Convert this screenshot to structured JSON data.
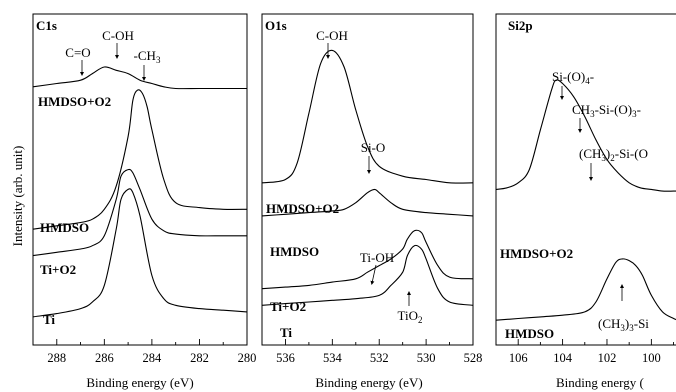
{
  "ylabel": "Intensity (arb. unit)",
  "colors": {
    "line": "#000000",
    "background": "#ffffff"
  },
  "chart_data": [
    {
      "type": "line",
      "title": "C1s",
      "xlabel": "Binding energy (eV)",
      "xlim": [
        289,
        280
      ],
      "xticks": [
        288,
        286,
        284,
        282,
        280
      ],
      "series": [
        {
          "name": "HMDSO+O2",
          "x": [
            289,
            288,
            287,
            286.5,
            286,
            285.5,
            285,
            284.5,
            284,
            283.5,
            283,
            282,
            281,
            280
          ],
          "y": [
            0.78,
            0.79,
            0.8,
            0.82,
            0.84,
            0.83,
            0.82,
            0.8,
            0.79,
            0.78,
            0.775,
            0.775,
            0.775,
            0.775
          ]
        },
        {
          "name": "HMDSO",
          "x": [
            289,
            288,
            287,
            286.5,
            286,
            285.5,
            285,
            284.8,
            284.6,
            284.4,
            284.2,
            284,
            283.5,
            283,
            282,
            281,
            280
          ],
          "y": [
            0.35,
            0.36,
            0.37,
            0.38,
            0.41,
            0.48,
            0.63,
            0.74,
            0.77,
            0.76,
            0.72,
            0.65,
            0.5,
            0.43,
            0.415,
            0.41,
            0.41
          ]
        },
        {
          "name": "Ti+O2",
          "x": [
            289,
            288,
            287,
            286.5,
            286,
            285.5,
            285.3,
            285,
            284.8,
            284.5,
            284,
            283.5,
            283,
            282,
            281,
            280
          ],
          "y": [
            0.27,
            0.28,
            0.29,
            0.3,
            0.33,
            0.44,
            0.51,
            0.53,
            0.52,
            0.47,
            0.38,
            0.345,
            0.335,
            0.33,
            0.33,
            0.33
          ]
        },
        {
          "name": "Ti",
          "x": [
            289,
            288,
            287,
            286.5,
            286,
            285.5,
            285.3,
            285,
            284.8,
            284.5,
            284,
            283.5,
            283,
            282,
            281,
            280
          ],
          "y": [
            0.085,
            0.095,
            0.11,
            0.13,
            0.18,
            0.35,
            0.44,
            0.47,
            0.46,
            0.39,
            0.21,
            0.14,
            0.12,
            0.11,
            0.105,
            0.1
          ]
        }
      ],
      "annotations": [
        "C=O",
        "C-OH",
        "-CH3"
      ],
      "annotation_x": [
        287.0,
        285.8,
        284.7
      ]
    },
    {
      "type": "line",
      "title": "O1s",
      "xlabel": "Binding energy (eV)",
      "xlim": [
        537,
        528
      ],
      "xticks": [
        536,
        534,
        532,
        530,
        528
      ],
      "series": [
        {
          "name": "HMDSO+O2",
          "x": [
            537,
            536,
            535.5,
            535,
            534.5,
            534,
            533.5,
            533,
            532.5,
            532,
            531,
            530,
            529,
            528
          ],
          "y": [
            0.49,
            0.5,
            0.55,
            0.7,
            0.85,
            0.89,
            0.84,
            0.71,
            0.6,
            0.54,
            0.51,
            0.5,
            0.49,
            0.49
          ]
        },
        {
          "name": "HMDSO",
          "x": [
            537,
            536,
            535,
            534,
            533.5,
            533,
            532.5,
            532.2,
            532,
            531.5,
            531,
            530,
            529,
            528
          ],
          "y": [
            0.39,
            0.395,
            0.4,
            0.405,
            0.41,
            0.43,
            0.46,
            0.47,
            0.46,
            0.43,
            0.41,
            0.4,
            0.395,
            0.39
          ]
        },
        {
          "name": "Ti+O2",
          "x": [
            537,
            536,
            535,
            534,
            533,
            532.5,
            532,
            531.5,
            531,
            530.8,
            530.5,
            530.2,
            530,
            529.5,
            529,
            528
          ],
          "y": [
            0.17,
            0.175,
            0.18,
            0.19,
            0.2,
            0.22,
            0.24,
            0.26,
            0.29,
            0.32,
            0.345,
            0.34,
            0.31,
            0.24,
            0.205,
            0.2
          ]
        },
        {
          "name": "Ti",
          "x": [
            537,
            536,
            535,
            534,
            533,
            532,
            531.5,
            531,
            530.8,
            530.5,
            530.2,
            530,
            529.5,
            529,
            528
          ],
          "y": [
            0.12,
            0.125,
            0.13,
            0.135,
            0.14,
            0.15,
            0.18,
            0.22,
            0.27,
            0.3,
            0.29,
            0.26,
            0.17,
            0.13,
            0.12
          ]
        }
      ],
      "annotations": [
        "C-OH",
        "Si-O",
        "Ti-OH",
        "TiO2"
      ],
      "annotation_x": [
        534.0,
        532.3,
        531.2,
        530.4
      ]
    },
    {
      "type": "line",
      "title": "Si2p",
      "xlabel": "Binding energy (",
      "xlim": [
        107,
        98.8
      ],
      "xticks": [
        106,
        104,
        102,
        100
      ],
      "series": [
        {
          "name": "HMDSO+O2",
          "x": [
            107,
            106.5,
            106,
            105.5,
            105,
            104.5,
            104.3,
            104,
            103.5,
            103,
            102.5,
            102,
            101.5,
            101,
            100.5,
            100,
            99.5,
            99,
            98.8
          ],
          "y": [
            0.47,
            0.475,
            0.49,
            0.53,
            0.65,
            0.77,
            0.8,
            0.79,
            0.75,
            0.69,
            0.62,
            0.56,
            0.52,
            0.49,
            0.475,
            0.47,
            0.465,
            0.465,
            0.465
          ]
        },
        {
          "name": "HMDSO",
          "x": [
            107,
            106,
            105,
            104,
            103,
            102.5,
            102,
            101.6,
            101.3,
            101,
            100.7,
            100.4,
            100,
            99.5,
            99,
            98.8
          ],
          "y": [
            0.075,
            0.08,
            0.085,
            0.09,
            0.1,
            0.13,
            0.2,
            0.25,
            0.26,
            0.255,
            0.24,
            0.21,
            0.15,
            0.1,
            0.08,
            0.075
          ]
        }
      ],
      "annotations": [
        "Si-(O)4-",
        "CH3-Si-(O)3-",
        "(CH3)2-Si-(O",
        "(CH3)3-Si"
      ],
      "annotation_x": [
        104.3,
        103.1,
        102.4,
        101.2
      ]
    }
  ]
}
